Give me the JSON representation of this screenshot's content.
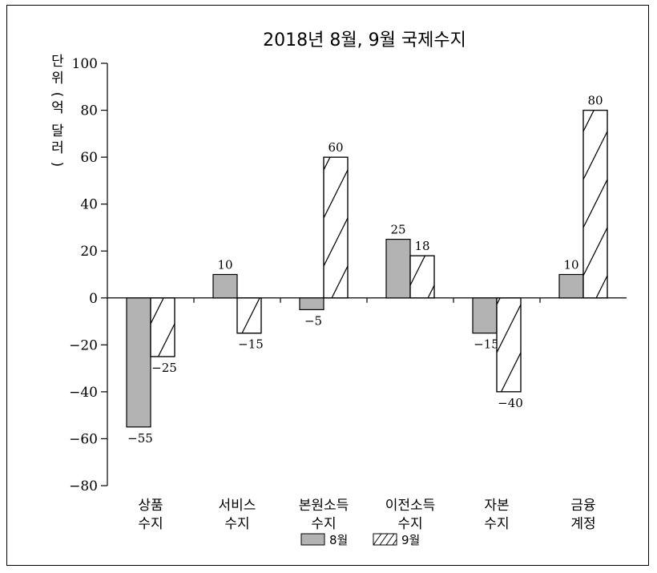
{
  "chart_data": {
    "type": "bar",
    "title": "2018년 8월, 9월 국제수지",
    "ylabel": "단위(억 달러)",
    "ylim": [
      -80,
      100
    ],
    "yticks": [
      100,
      80,
      60,
      40,
      20,
      0,
      -20,
      -40,
      -60,
      -80
    ],
    "ytick_labels": [
      "100",
      "80",
      "60",
      "40",
      "20",
      "0",
      "−20",
      "−40",
      "−60",
      "−80"
    ],
    "categories": [
      [
        "상품",
        "수지"
      ],
      [
        "서비스",
        "수지"
      ],
      [
        "본원소득",
        "수지"
      ],
      [
        "이전소득",
        "수지"
      ],
      [
        "자본",
        "수지"
      ],
      [
        "금융",
        "계정"
      ]
    ],
    "series": [
      {
        "name": "8월",
        "style": "gray",
        "values": [
          -55,
          10,
          -5,
          25,
          -15,
          10
        ],
        "labels": [
          "−55",
          "10",
          "−5",
          "25",
          "−15",
          "10"
        ]
      },
      {
        "name": "9월",
        "style": "hatched",
        "values": [
          -25,
          -15,
          60,
          18,
          -40,
          80
        ],
        "labels": [
          "−25",
          "−15",
          "60",
          "18",
          "−40",
          "80"
        ]
      }
    ],
    "legend_position": "bottom-center",
    "grid": false,
    "colors": {
      "gray_fill": "#b3b3b3",
      "hatched_fill": "#ffffff",
      "stroke": "#000000"
    }
  }
}
